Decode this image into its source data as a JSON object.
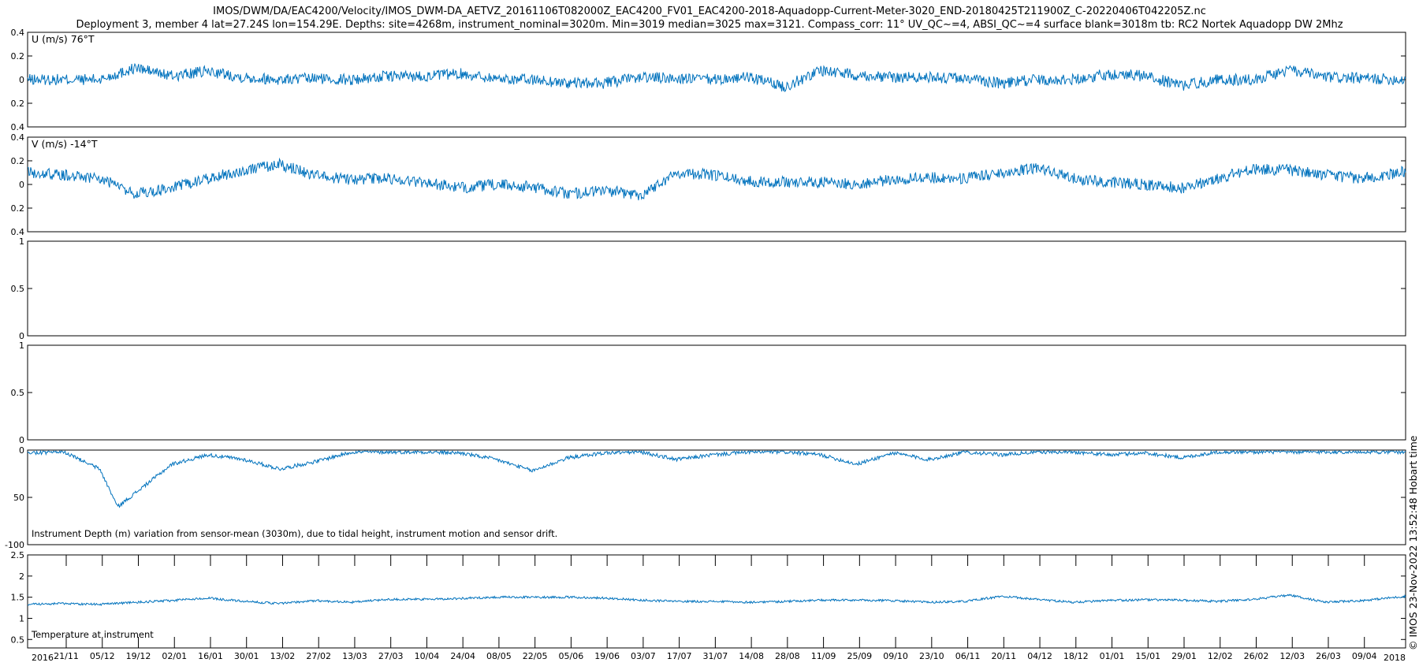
{
  "figure": {
    "title_line1": "IMOS/DWM/DA/EAC4200/Velocity/IMOS_DWM-DA_AETVZ_20161106T082000Z_EAC4200_FV01_EAC4200-2018-Aquadopp-Current-Meter-3020_END-20180425T211900Z_C-20220406T042205Z.nc",
    "title_line2": "Deployment 3, member 4 lat=27.24S lon=154.29E. Depths: site=4268m, instrument_nominal=3020m. Min=3019 median=3025 max=3121. Compass_corr: 11° UV_QC~=4, ABSI_QC~=4 surface blank=3018m tb: RC2 Nortek Aquadopp DW 2Mhz",
    "credit": "© IMOS 23-Nov-2022 13:52:48 Hobart time",
    "series_color": "#0072bd",
    "year_left": "2016",
    "year_right": "2018"
  },
  "chart_data": [
    {
      "type": "line",
      "id": "u",
      "label": "U (m/s) 76°T",
      "ylim": [
        -0.4,
        0.4
      ],
      "yticks": [
        0.4,
        0.2,
        0,
        -0.2,
        -0.4
      ],
      "ytick_labels": [
        "0.4",
        "0.2",
        "0",
        "0.2",
        "0.4"
      ],
      "x": [
        "2016-11-06",
        "2016-11-20",
        "2016-12-04",
        "2016-12-18",
        "2017-01-01",
        "2017-01-15",
        "2017-01-29",
        "2017-02-12",
        "2017-02-26",
        "2017-03-12",
        "2017-03-26",
        "2017-04-09",
        "2017-04-23",
        "2017-05-07",
        "2017-05-21",
        "2017-06-04",
        "2017-06-18",
        "2017-07-02",
        "2017-07-16",
        "2017-07-30",
        "2017-08-13",
        "2017-08-27",
        "2017-09-10",
        "2017-09-24",
        "2017-10-08",
        "2017-10-22",
        "2017-11-05",
        "2017-11-19",
        "2017-12-03",
        "2017-12-17",
        "2017-12-31",
        "2018-01-14",
        "2018-01-28",
        "2018-02-11",
        "2018-02-25",
        "2018-03-11",
        "2018-03-25",
        "2018-04-08",
        "2018-04-25"
      ],
      "values": [
        0.0,
        0.0,
        0.0,
        0.1,
        0.03,
        0.07,
        0.02,
        0.0,
        0.01,
        0.0,
        0.03,
        0.03,
        0.05,
        0.01,
        0.0,
        -0.03,
        -0.03,
        0.02,
        0.01,
        0.0,
        0.02,
        -0.06,
        0.08,
        0.04,
        0.02,
        0.02,
        0.01,
        -0.03,
        0.0,
        0.0,
        0.05,
        0.03,
        -0.05,
        0.0,
        0.0,
        0.08,
        0.02,
        0.01,
        0.0
      ]
    },
    {
      "type": "line",
      "id": "v",
      "label": "V (m/s) -14°T",
      "ylim": [
        -0.4,
        0.4
      ],
      "yticks": [
        0.4,
        0.2,
        0,
        -0.2,
        -0.4
      ],
      "ytick_labels": [
        "0.4",
        "0.2",
        "0",
        "0.2",
        "0.4"
      ],
      "x": [
        "2016-11-06",
        "2016-11-20",
        "2016-12-04",
        "2016-12-18",
        "2017-01-01",
        "2017-01-15",
        "2017-01-29",
        "2017-02-12",
        "2017-02-26",
        "2017-03-12",
        "2017-03-26",
        "2017-04-09",
        "2017-04-23",
        "2017-05-07",
        "2017-05-21",
        "2017-06-04",
        "2017-06-18",
        "2017-07-02",
        "2017-07-16",
        "2017-07-30",
        "2017-08-13",
        "2017-08-27",
        "2017-09-10",
        "2017-09-24",
        "2017-10-08",
        "2017-10-22",
        "2017-11-05",
        "2017-11-19",
        "2017-12-03",
        "2017-12-17",
        "2017-12-31",
        "2018-01-14",
        "2018-01-28",
        "2018-02-11",
        "2018-02-25",
        "2018-03-11",
        "2018-03-25",
        "2018-04-08",
        "2018-04-25"
      ],
      "values": [
        0.1,
        0.08,
        0.05,
        -0.08,
        -0.03,
        0.05,
        0.12,
        0.17,
        0.07,
        0.04,
        0.05,
        0.02,
        -0.03,
        0.0,
        -0.02,
        -0.08,
        -0.05,
        -0.09,
        0.1,
        0.08,
        0.03,
        0.02,
        0.02,
        0.0,
        0.04,
        0.06,
        0.05,
        0.1,
        0.14,
        0.05,
        0.02,
        0.0,
        -0.03,
        0.05,
        0.13,
        0.12,
        0.08,
        0.05,
        0.11
      ]
    },
    {
      "type": "line",
      "id": "empty1",
      "label": "",
      "ylim": [
        0,
        1
      ],
      "yticks": [
        1,
        0.5,
        0
      ],
      "ytick_labels": [
        "1",
        "0.5",
        "0"
      ],
      "x": [],
      "values": []
    },
    {
      "type": "line",
      "id": "empty2",
      "label": "",
      "ylim": [
        0,
        1
      ],
      "yticks": [
        1,
        0.5,
        0
      ],
      "ytick_labels": [
        "1",
        "0.5",
        "0"
      ],
      "x": [],
      "values": []
    },
    {
      "type": "line",
      "id": "depth",
      "label": "Instrument Depth (m) variation from sensor-mean (3030m), due to tidal height, instrument motion and sensor drift.",
      "ylim": [
        -100,
        0
      ],
      "yticks": [
        0,
        -50,
        -100
      ],
      "ytick_labels": [
        "0",
        "50",
        "-100"
      ],
      "x": [
        "2016-11-06",
        "2016-11-20",
        "2016-12-04",
        "2016-12-11",
        "2016-12-18",
        "2017-01-01",
        "2017-01-15",
        "2017-01-29",
        "2017-02-12",
        "2017-02-26",
        "2017-03-12",
        "2017-03-26",
        "2017-04-09",
        "2017-04-23",
        "2017-05-07",
        "2017-05-21",
        "2017-06-04",
        "2017-06-18",
        "2017-07-02",
        "2017-07-16",
        "2017-07-30",
        "2017-08-13",
        "2017-08-27",
        "2017-09-10",
        "2017-09-24",
        "2017-10-08",
        "2017-10-22",
        "2017-11-05",
        "2017-11-19",
        "2017-12-03",
        "2017-12-17",
        "2017-12-31",
        "2018-01-14",
        "2018-01-28",
        "2018-02-11",
        "2018-02-25",
        "2018-03-11",
        "2018-03-25",
        "2018-04-08",
        "2018-04-25"
      ],
      "values": [
        -3,
        -2,
        -20,
        -60,
        -45,
        -15,
        -5,
        -10,
        -20,
        -12,
        -2,
        -2,
        -2,
        -3,
        -10,
        -22,
        -8,
        -3,
        -2,
        -10,
        -5,
        -2,
        -2,
        -5,
        -15,
        -3,
        -10,
        -2,
        -5,
        -2,
        -2,
        -5,
        -3,
        -8,
        -2,
        -2,
        -2,
        -2,
        -2,
        -2
      ]
    },
    {
      "type": "line",
      "id": "temp",
      "label": "Temperature at instrument",
      "ylim": [
        0.3,
        2.5
      ],
      "yticks": [
        2.5,
        2,
        1.5,
        1,
        0.5
      ],
      "ytick_labels": [
        "2.5",
        "2",
        "1.5",
        "1",
        "0.5"
      ],
      "x": [
        "2016-11-06",
        "2016-11-20",
        "2016-12-04",
        "2016-12-18",
        "2017-01-01",
        "2017-01-15",
        "2017-01-29",
        "2017-02-12",
        "2017-02-26",
        "2017-03-12",
        "2017-03-26",
        "2017-04-09",
        "2017-04-23",
        "2017-05-07",
        "2017-05-21",
        "2017-06-04",
        "2017-06-18",
        "2017-07-02",
        "2017-07-16",
        "2017-07-30",
        "2017-08-13",
        "2017-08-27",
        "2017-09-10",
        "2017-09-24",
        "2017-10-08",
        "2017-10-22",
        "2017-11-05",
        "2017-11-19",
        "2017-12-03",
        "2017-12-17",
        "2017-12-31",
        "2018-01-14",
        "2018-01-28",
        "2018-02-11",
        "2018-02-25",
        "2018-03-11",
        "2018-03-25",
        "2018-04-08",
        "2018-04-25"
      ],
      "values": [
        1.33,
        1.35,
        1.33,
        1.38,
        1.42,
        1.48,
        1.4,
        1.35,
        1.42,
        1.38,
        1.45,
        1.45,
        1.47,
        1.5,
        1.5,
        1.5,
        1.48,
        1.43,
        1.4,
        1.4,
        1.38,
        1.4,
        1.43,
        1.43,
        1.42,
        1.38,
        1.4,
        1.52,
        1.45,
        1.38,
        1.42,
        1.44,
        1.43,
        1.4,
        1.45,
        1.55,
        1.38,
        1.42,
        1.52
      ]
    }
  ],
  "x_axis": {
    "tick_dates": [
      "2016-11-21",
      "2016-12-05",
      "2016-12-19",
      "2017-01-02",
      "2017-01-16",
      "2017-01-30",
      "2017-02-13",
      "2017-02-27",
      "2017-03-13",
      "2017-03-27",
      "2017-04-10",
      "2017-04-24",
      "2017-05-08",
      "2017-05-22",
      "2017-06-05",
      "2017-06-19",
      "2017-07-03",
      "2017-07-17",
      "2017-07-31",
      "2017-08-14",
      "2017-08-28",
      "2017-09-11",
      "2017-09-25",
      "2017-10-09",
      "2017-10-23",
      "2017-11-06",
      "2017-11-20",
      "2017-12-04",
      "2017-12-18",
      "2018-01-01",
      "2018-01-15",
      "2018-01-29",
      "2018-02-12",
      "2018-02-26",
      "2018-03-12",
      "2018-03-26",
      "2018-04-09"
    ],
    "tick_labels": [
      "21/11",
      "05/12",
      "19/12",
      "02/01",
      "16/01",
      "30/01",
      "13/02",
      "27/02",
      "13/03",
      "27/03",
      "10/04",
      "24/04",
      "08/05",
      "22/05",
      "05/06",
      "19/06",
      "03/07",
      "17/07",
      "31/07",
      "14/08",
      "28/08",
      "11/09",
      "25/09",
      "09/10",
      "23/10",
      "06/11",
      "20/11",
      "04/12",
      "18/12",
      "01/01",
      "15/01",
      "29/01",
      "12/02",
      "26/02",
      "12/03",
      "26/03",
      "09/04"
    ],
    "range": [
      "2016-11-06",
      "2018-04-25"
    ]
  }
}
